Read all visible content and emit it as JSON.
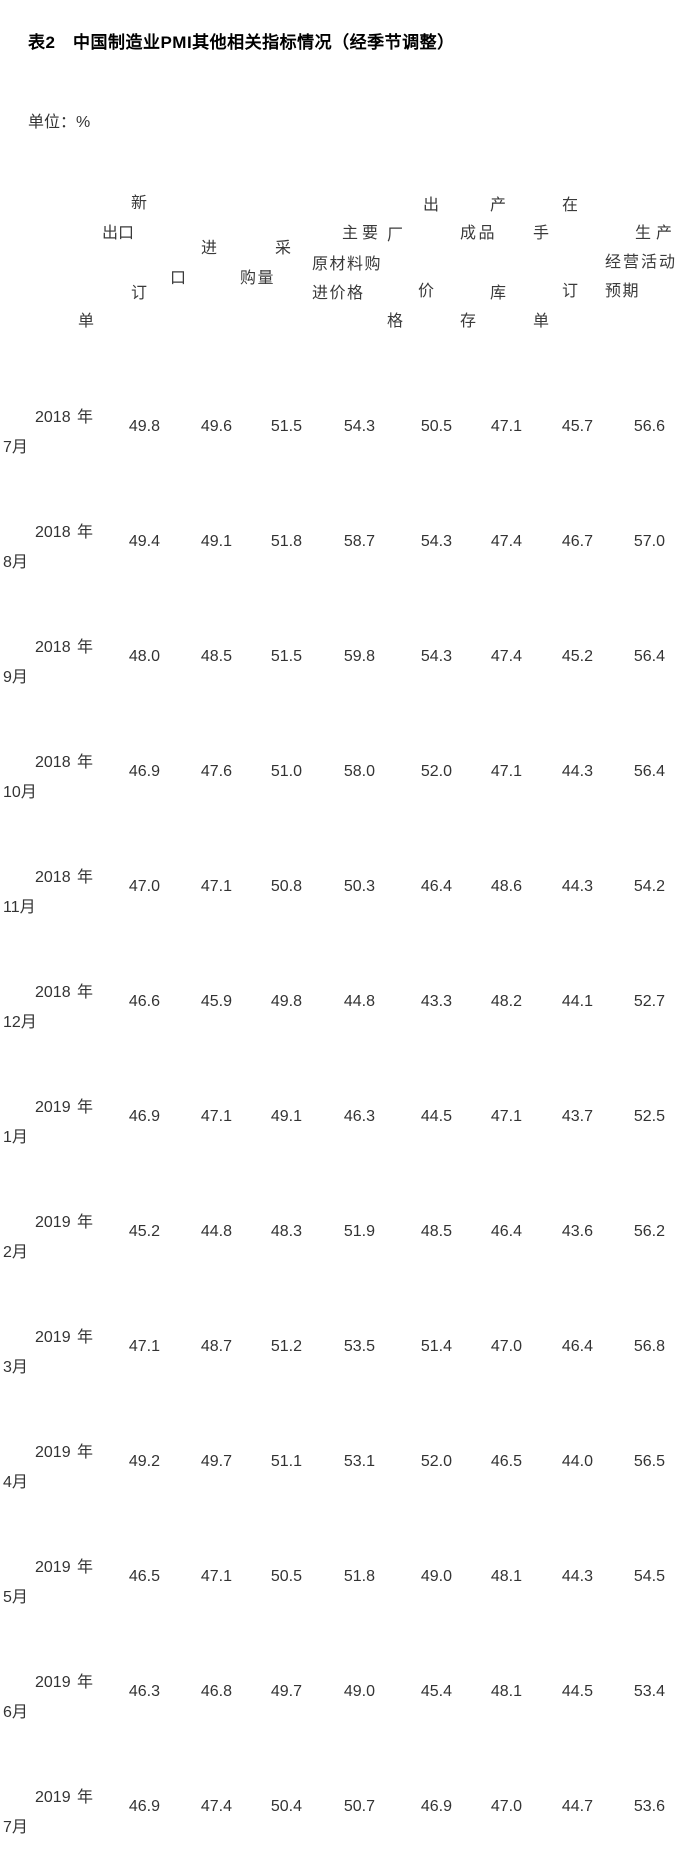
{
  "page": {
    "title": "表2　中国制造业PMI其他相关指标情况（经季节调整）",
    "unit_label": "单位：%"
  },
  "table": {
    "header_columns": [
      {
        "label": "新出口订单",
        "lines": [
          "新",
          "出口",
          "订",
          "单"
        ]
      },
      {
        "label": "进口",
        "lines": [
          "进",
          "口"
        ]
      },
      {
        "label": "采购量",
        "lines": [
          "采",
          "购量"
        ]
      },
      {
        "label": "主要原材料购进价格",
        "lines": [
          "主要",
          "原材料购",
          "进价格"
        ]
      },
      {
        "label": "出厂价格",
        "lines": [
          "出",
          "厂",
          "价",
          "格"
        ]
      },
      {
        "label": "产成品库存",
        "lines": [
          "产",
          "成品",
          "库",
          "存"
        ]
      },
      {
        "label": "在手订单",
        "lines": [
          "在",
          "手",
          "订",
          "单"
        ]
      },
      {
        "label": "生产经营活动预期",
        "lines": [
          "生产",
          "经营活动",
          "预期"
        ]
      }
    ],
    "rows": [
      {
        "year": "2018 年",
        "month": "7月",
        "values": [
          "49.8",
          "49.6",
          "51.5",
          "54.3",
          "50.5",
          "47.1",
          "45.7",
          "56.6"
        ]
      },
      {
        "year": "2018 年",
        "month": "8月",
        "values": [
          "49.4",
          "49.1",
          "51.8",
          "58.7",
          "54.3",
          "47.4",
          "46.7",
          "57.0"
        ]
      },
      {
        "year": "2018 年",
        "month": "9月",
        "values": [
          "48.0",
          "48.5",
          "51.5",
          "59.8",
          "54.3",
          "47.4",
          "45.2",
          "56.4"
        ]
      },
      {
        "year": "2018 年",
        "month": "10月",
        "values": [
          "46.9",
          "47.6",
          "51.0",
          "58.0",
          "52.0",
          "47.1",
          "44.3",
          "56.4"
        ]
      },
      {
        "year": "2018 年",
        "month": "11月",
        "values": [
          "47.0",
          "47.1",
          "50.8",
          "50.3",
          "46.4",
          "48.6",
          "44.3",
          "54.2"
        ]
      },
      {
        "year": "2018 年",
        "month": "12月",
        "values": [
          "46.6",
          "45.9",
          "49.8",
          "44.8",
          "43.3",
          "48.2",
          "44.1",
          "52.7"
        ]
      },
      {
        "year": "2019 年",
        "month": "1月",
        "values": [
          "46.9",
          "47.1",
          "49.1",
          "46.3",
          "44.5",
          "47.1",
          "43.7",
          "52.5"
        ]
      },
      {
        "year": "2019 年",
        "month": "2月",
        "values": [
          "45.2",
          "44.8",
          "48.3",
          "51.9",
          "48.5",
          "46.4",
          "43.6",
          "56.2"
        ]
      },
      {
        "year": "2019 年",
        "month": "3月",
        "values": [
          "47.1",
          "48.7",
          "51.2",
          "53.5",
          "51.4",
          "47.0",
          "46.4",
          "56.8"
        ]
      },
      {
        "year": "2019 年",
        "month": "4月",
        "values": [
          "49.2",
          "49.7",
          "51.1",
          "53.1",
          "52.0",
          "46.5",
          "44.0",
          "56.5"
        ]
      },
      {
        "year": "2019 年",
        "month": "5月",
        "values": [
          "46.5",
          "47.1",
          "50.5",
          "51.8",
          "49.0",
          "48.1",
          "44.3",
          "54.5"
        ]
      },
      {
        "year": "2019 年",
        "month": "6月",
        "values": [
          "46.3",
          "46.8",
          "49.7",
          "49.0",
          "45.4",
          "48.1",
          "44.5",
          "53.4"
        ]
      },
      {
        "year": "2019 年",
        "month": "7月",
        "values": [
          "46.9",
          "47.4",
          "50.4",
          "50.7",
          "46.9",
          "47.0",
          "44.7",
          "53.6"
        ]
      }
    ]
  }
}
